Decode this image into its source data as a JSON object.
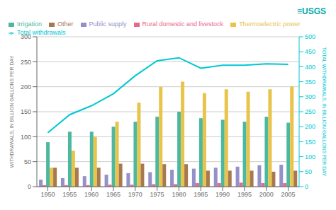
{
  "chart_data": {
    "type": "bar",
    "categories": [
      "1950",
      "1955",
      "1960",
      "1965",
      "1970",
      "1975",
      "1980",
      "1985",
      "1990",
      "1995",
      "2000",
      "2005"
    ],
    "series": [
      {
        "name": "Public supply",
        "color": "#9590c8",
        "values": [
          14,
          17,
          21,
          24,
          27,
          29,
          34,
          36,
          38,
          40,
          43,
          44
        ]
      },
      {
        "name": "Rural domestic and livestock",
        "color": "#e8688a",
        "values": [
          3,
          3,
          3,
          4,
          4,
          5,
          5,
          7,
          7,
          8,
          7,
          7
        ]
      },
      {
        "name": "Irrigation",
        "color": "#4db8a0",
        "values": [
          89,
          110,
          110,
          120,
          130,
          140,
          150,
          137,
          134,
          130,
          140,
          128
        ]
      },
      {
        "name": "Thermoelectric power",
        "color": "#e8c44a",
        "values": [
          38,
          72,
          100,
          130,
          168,
          200,
          210,
          187,
          195,
          190,
          195,
          201
        ]
      },
      {
        "name": "Other",
        "color": "#a87850",
        "values": [
          38,
          38,
          38,
          46,
          46,
          45,
          45,
          32,
          32,
          32,
          30,
          32
        ]
      },
      {
        "name": "Total withdrawals",
        "type": "line",
        "axis": "y2",
        "color": "#00c8d4",
        "values": [
          180,
          240,
          270,
          310,
          370,
          420,
          430,
          395,
          405,
          405,
          410,
          408
        ]
      }
    ],
    "ylabel": "WITHDRAWALS, IN BILLION GALLONS PER DAY",
    "y2label": "TOTAL WITHDRAWALS, IN BILLION GALLONS PER DAY",
    "ylim": [
      0,
      300
    ],
    "yticks": [
      0,
      50,
      100,
      150,
      200,
      250,
      300
    ],
    "y2lim": [
      0,
      500
    ],
    "y2ticks": [
      0,
      50,
      100,
      150,
      200,
      250,
      300,
      350,
      400,
      450,
      500
    ],
    "grid": true,
    "legend": "upper left",
    "annotations": [
      {
        "text": "≡USGS",
        "color": "#00aaaa"
      }
    ]
  }
}
